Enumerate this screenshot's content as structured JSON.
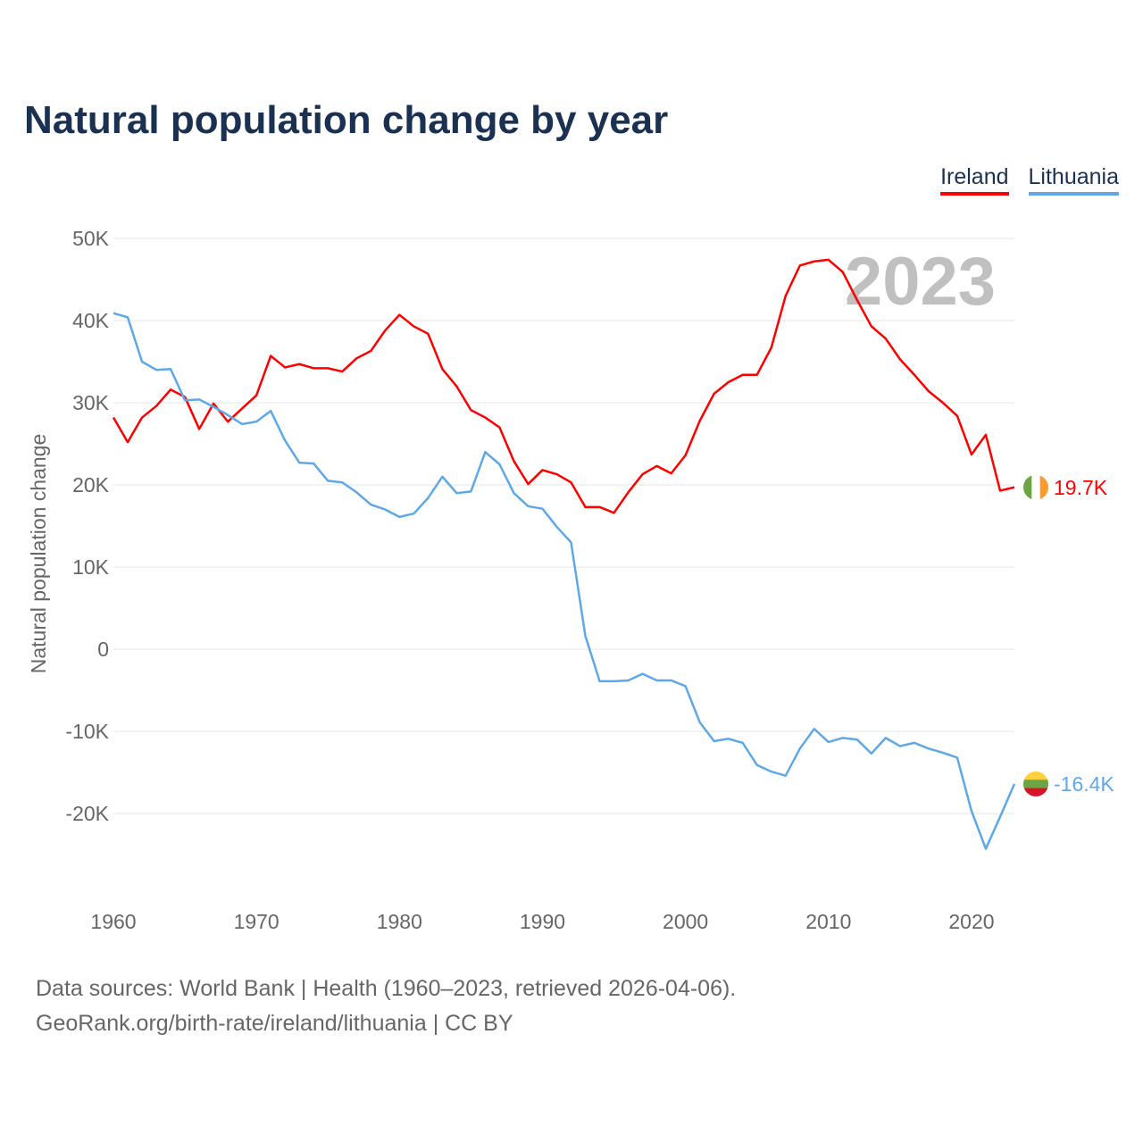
{
  "chart_data": {
    "type": "line",
    "title": "Natural population change by year",
    "xlabel": "",
    "ylabel": "Natural population change",
    "xlim": [
      1960,
      2023
    ],
    "ylim": [
      -30000,
      50000
    ],
    "y_ticks": [
      50000,
      40000,
      30000,
      20000,
      10000,
      0,
      -10000,
      -20000
    ],
    "y_tick_labels": [
      "50K",
      "40K",
      "30K",
      "20K",
      "10K",
      "0",
      "-10K",
      "-20K"
    ],
    "x_ticks": [
      1960,
      1970,
      1980,
      1990,
      2000,
      2010,
      2020
    ],
    "x_tick_labels": [
      "1960",
      "1970",
      "1980",
      "1990",
      "2000",
      "2010",
      "2020"
    ],
    "grid": true,
    "legend_position": "top-right",
    "year_watermark": "2023",
    "x": [
      1960,
      1961,
      1962,
      1963,
      1964,
      1965,
      1966,
      1967,
      1968,
      1969,
      1970,
      1971,
      1972,
      1973,
      1974,
      1975,
      1976,
      1977,
      1978,
      1979,
      1980,
      1981,
      1982,
      1983,
      1984,
      1985,
      1986,
      1987,
      1988,
      1989,
      1990,
      1991,
      1992,
      1993,
      1994,
      1995,
      1996,
      1997,
      1998,
      1999,
      2000,
      2001,
      2002,
      2003,
      2004,
      2005,
      2006,
      2007,
      2008,
      2009,
      2010,
      2011,
      2012,
      2013,
      2014,
      2015,
      2016,
      2017,
      2018,
      2019,
      2020,
      2021,
      2022,
      2023
    ],
    "series": [
      {
        "name": "Ireland",
        "color": "#ff0000",
        "end_label": "19.7K",
        "values": [
          28200,
          25200,
          28200,
          29600,
          31600,
          30700,
          26800,
          29900,
          27700,
          29300,
          30900,
          35700,
          34300,
          34700,
          34200,
          34200,
          33800,
          35400,
          36300,
          38800,
          40700,
          39300,
          38400,
          34100,
          32000,
          29100,
          28200,
          27000,
          22900,
          20100,
          21800,
          21300,
          20300,
          17300,
          17300,
          16600,
          19100,
          21300,
          22300,
          21400,
          23600,
          27800,
          31100,
          32500,
          33400,
          33400,
          36700,
          43000,
          46700,
          47200,
          47400,
          45900,
          42500,
          39300,
          37800,
          35300,
          33400,
          31400,
          30000,
          28400,
          23700,
          26100,
          19300,
          19700
        ]
      },
      {
        "name": "Lithuania",
        "color": "#5fa8e8",
        "end_label": "-16.4K",
        "values": [
          40900,
          40400,
          35000,
          34000,
          34100,
          30300,
          30400,
          29500,
          28500,
          27400,
          27700,
          29000,
          25400,
          22700,
          22600,
          20500,
          20300,
          19100,
          17600,
          17000,
          16100,
          16500,
          18400,
          21000,
          19000,
          19200,
          24000,
          22500,
          19000,
          17400,
          17100,
          14900,
          13000,
          1600,
          -3900,
          -3900,
          -3800,
          -3000,
          -3800,
          -3800,
          -4500,
          -8900,
          -11200,
          -10900,
          -11400,
          -14100,
          -14900,
          -15400,
          -12100,
          -9700,
          -11300,
          -10800,
          -11000,
          -12700,
          -10800,
          -11800,
          -11400,
          -12100,
          -12600,
          -13200,
          -19700,
          -24300,
          -20400,
          -16400
        ]
      }
    ]
  },
  "source": {
    "line1": "Data sources: World Bank | Health (1960–2023, retrieved 2026-04-06).",
    "line2": "GeoRank.org/birth-rate/ireland/lithuania | CC BY"
  }
}
